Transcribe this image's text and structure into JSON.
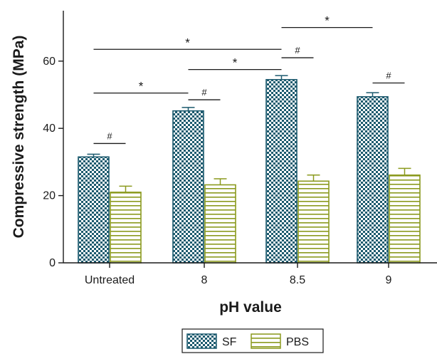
{
  "chart_data": {
    "type": "bar",
    "title": "",
    "xlabel": "pH value",
    "ylabel": "Compressive strength (MPa)",
    "ylim": [
      0,
      75
    ],
    "yticks": [
      0,
      20,
      40,
      60
    ],
    "categories": [
      "Untreated",
      "8",
      "8.5",
      "9"
    ],
    "series": [
      {
        "name": "SF",
        "values": [
          31.5,
          45.2,
          54.5,
          49.4
        ],
        "errors": [
          0.8,
          1.0,
          1.2,
          1.2
        ],
        "color": "#1c5a6e",
        "pattern": "checker"
      },
      {
        "name": "PBS",
        "values": [
          21.0,
          23.2,
          24.3,
          26.1
        ],
        "errors": [
          1.8,
          1.8,
          1.8,
          2.0
        ],
        "color": "#8b9a1e",
        "pattern": "horizontal-stripes"
      }
    ],
    "significance": [
      {
        "label": "#",
        "from": [
          0,
          0
        ],
        "to": [
          0,
          1
        ],
        "y": 35.5
      },
      {
        "label": "*",
        "from": [
          0,
          0
        ],
        "to": [
          1,
          0
        ],
        "y": 50.5
      },
      {
        "label": "#",
        "from": [
          1,
          0
        ],
        "to": [
          1,
          1
        ],
        "y": 48.5
      },
      {
        "label": "*",
        "from": [
          1,
          0
        ],
        "to": [
          2,
          0
        ],
        "y": 57.5
      },
      {
        "label": "*",
        "from": [
          0,
          0
        ],
        "to": [
          2,
          0
        ],
        "y": 63.5
      },
      {
        "label": "#",
        "from": [
          2,
          0
        ],
        "to": [
          2,
          1
        ],
        "y": 61.0
      },
      {
        "label": "*",
        "from": [
          2,
          0
        ],
        "to": [
          3,
          0
        ],
        "y": 70.0
      },
      {
        "label": "#",
        "from": [
          3,
          0
        ],
        "to": [
          3,
          1
        ],
        "y": 53.5
      }
    ],
    "legend": {
      "position": "bottom",
      "entries": [
        "SF",
        "PBS"
      ]
    },
    "grid": false
  }
}
